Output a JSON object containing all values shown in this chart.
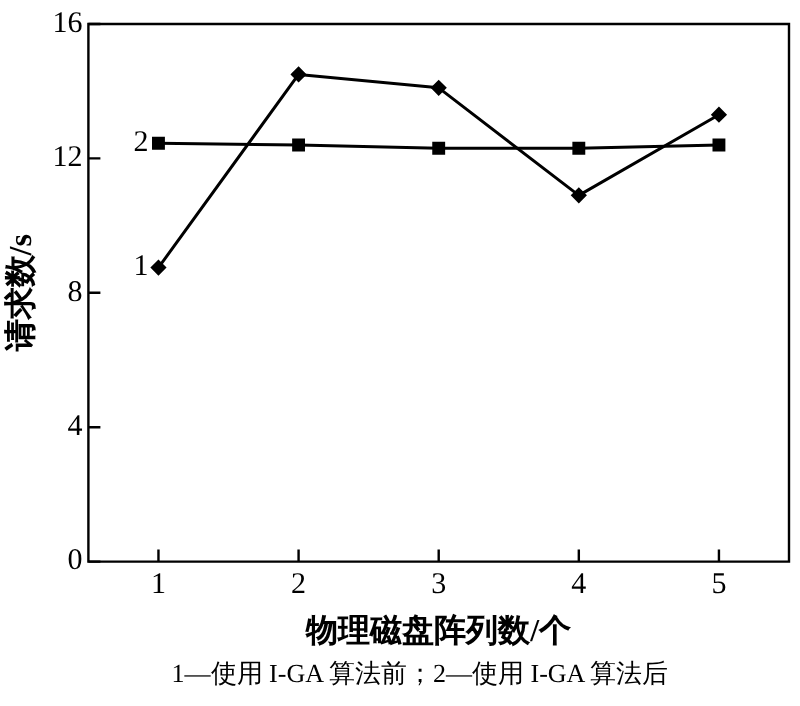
{
  "chart_data": {
    "type": "line",
    "xlabel": "物理磁盘阵列数/个",
    "ylabel": "请求数/s",
    "x": [
      1,
      2,
      3,
      4,
      5
    ],
    "xlim": [
      0.5,
      5.5
    ],
    "xticks": [
      1,
      2,
      3,
      4,
      5
    ],
    "ylim": [
      0,
      16
    ],
    "yticks": [
      0,
      4,
      8,
      12,
      16
    ],
    "grid": false,
    "legend": false,
    "line_style": "solid",
    "series": [
      {
        "name": "1",
        "color": "#000000",
        "marker": "diamond",
        "values": [
          8.75,
          14.5,
          14.1,
          10.9,
          13.3
        ]
      },
      {
        "name": "2",
        "color": "#000000",
        "marker": "square",
        "values": [
          12.45,
          12.4,
          12.3,
          12.3,
          12.4
        ]
      }
    ],
    "annotations": [
      "1—使用 I-GA 算法前；2—使用 I-GA 算法后"
    ]
  }
}
